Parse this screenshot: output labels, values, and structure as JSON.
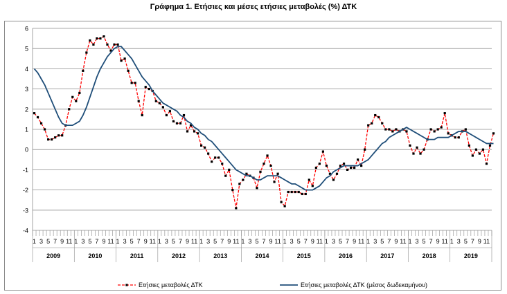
{
  "chart_data": {
    "type": "line",
    "title": "Γράφημα 1. Ετήσιες και μέσες ετήσιες μεταβολές (%) ΔΤΚ",
    "xlabel": "",
    "ylabel": "",
    "ylim": [
      -4,
      6
    ],
    "yticks": [
      "6",
      "5",
      "4",
      "3",
      "2",
      "1",
      "0",
      "-1",
      "-2",
      "-3",
      "-4"
    ],
    "years": [
      "2009",
      "2010",
      "2011",
      "2012",
      "2013",
      "2014",
      "2015",
      "2016",
      "2017",
      "2018",
      "2019"
    ],
    "month_ticks": [
      "1",
      "3",
      "5",
      "7",
      "9",
      "11"
    ],
    "grid": true,
    "legend_position": "bottom",
    "series": [
      {
        "name": "Ετήσιες μεταβολές ΔΤΚ",
        "color": "#ff0000",
        "style": "dashed-markers",
        "values": [
          1.8,
          1.6,
          1.3,
          1.0,
          0.5,
          0.5,
          0.6,
          0.7,
          0.7,
          1.2,
          2.0,
          2.6,
          2.4,
          2.8,
          3.9,
          4.8,
          5.4,
          5.2,
          5.5,
          5.5,
          5.6,
          5.2,
          4.9,
          5.2,
          5.2,
          4.4,
          4.5,
          3.9,
          3.3,
          3.3,
          2.4,
          1.7,
          3.1,
          3.0,
          2.9,
          2.4,
          2.3,
          2.1,
          1.7,
          1.9,
          1.4,
          1.3,
          1.3,
          1.7,
          0.9,
          1.2,
          0.9,
          0.8,
          0.2,
          0.1,
          -0.2,
          -0.6,
          -0.4,
          -0.4,
          -0.7,
          -1.3,
          -1.0,
          -2.0,
          -2.9,
          -1.7,
          -1.5,
          -1.2,
          -1.3,
          -1.4,
          -1.9,
          -1.1,
          -0.7,
          -0.3,
          -0.8,
          -1.6,
          -1.2,
          -2.6,
          -2.8,
          -2.1,
          -2.1,
          -2.1,
          -2.1,
          -2.2,
          -2.2,
          -1.5,
          -1.8,
          -0.9,
          -0.7,
          -0.1,
          -0.8,
          -1.2,
          -1.5,
          -1.2,
          -0.8,
          -0.7,
          -1.0,
          -0.9,
          -0.9,
          -0.5,
          -0.8,
          0.0,
          1.2,
          1.3,
          1.7,
          1.6,
          1.3,
          1.0,
          1.0,
          0.9,
          1.0,
          0.9,
          1.0,
          0.9,
          0.2,
          -0.2,
          0.1,
          -0.2,
          0.0,
          0.5,
          1.0,
          0.9,
          1.0,
          1.1,
          1.8,
          0.8,
          0.7,
          0.6,
          0.6,
          0.9,
          1.0,
          0.2,
          -0.3,
          0.0,
          -0.2,
          0.0,
          -0.7,
          0.2,
          0.8
        ]
      },
      {
        "name": "Ετήσιες μεταβολές ΔΤΚ (μέσος δωδεκαμήνου)",
        "color": "#1f4e79",
        "style": "solid",
        "values": [
          4.0,
          3.8,
          3.5,
          3.2,
          2.8,
          2.4,
          2.0,
          1.6,
          1.3,
          1.2,
          1.2,
          1.2,
          1.3,
          1.4,
          1.7,
          2.1,
          2.6,
          3.1,
          3.6,
          4.0,
          4.3,
          4.6,
          4.8,
          5.0,
          5.1,
          5.1,
          4.9,
          4.7,
          4.5,
          4.2,
          3.9,
          3.6,
          3.4,
          3.2,
          2.9,
          2.7,
          2.5,
          2.3,
          2.2,
          2.1,
          2.0,
          1.9,
          1.7,
          1.6,
          1.4,
          1.3,
          1.1,
          1.0,
          0.8,
          0.7,
          0.5,
          0.4,
          0.2,
          0.0,
          -0.2,
          -0.4,
          -0.6,
          -0.8,
          -1.0,
          -1.1,
          -1.2,
          -1.3,
          -1.3,
          -1.4,
          -1.5,
          -1.5,
          -1.4,
          -1.3,
          -1.3,
          -1.3,
          -1.3,
          -1.4,
          -1.5,
          -1.6,
          -1.7,
          -1.7,
          -1.8,
          -1.9,
          -2.0,
          -2.0,
          -2.0,
          -1.9,
          -1.8,
          -1.6,
          -1.4,
          -1.3,
          -1.1,
          -1.0,
          -0.9,
          -0.8,
          -0.8,
          -0.8,
          -0.8,
          -0.8,
          -0.7,
          -0.6,
          -0.5,
          -0.3,
          -0.1,
          0.1,
          0.3,
          0.4,
          0.6,
          0.7,
          0.8,
          0.9,
          1.0,
          1.1,
          1.0,
          0.9,
          0.8,
          0.7,
          0.6,
          0.5,
          0.5,
          0.5,
          0.6,
          0.6,
          0.6,
          0.6,
          0.7,
          0.8,
          0.9,
          0.9,
          0.9,
          0.8,
          0.7,
          0.6,
          0.5,
          0.4,
          0.3,
          0.3,
          0.3
        ]
      }
    ]
  }
}
